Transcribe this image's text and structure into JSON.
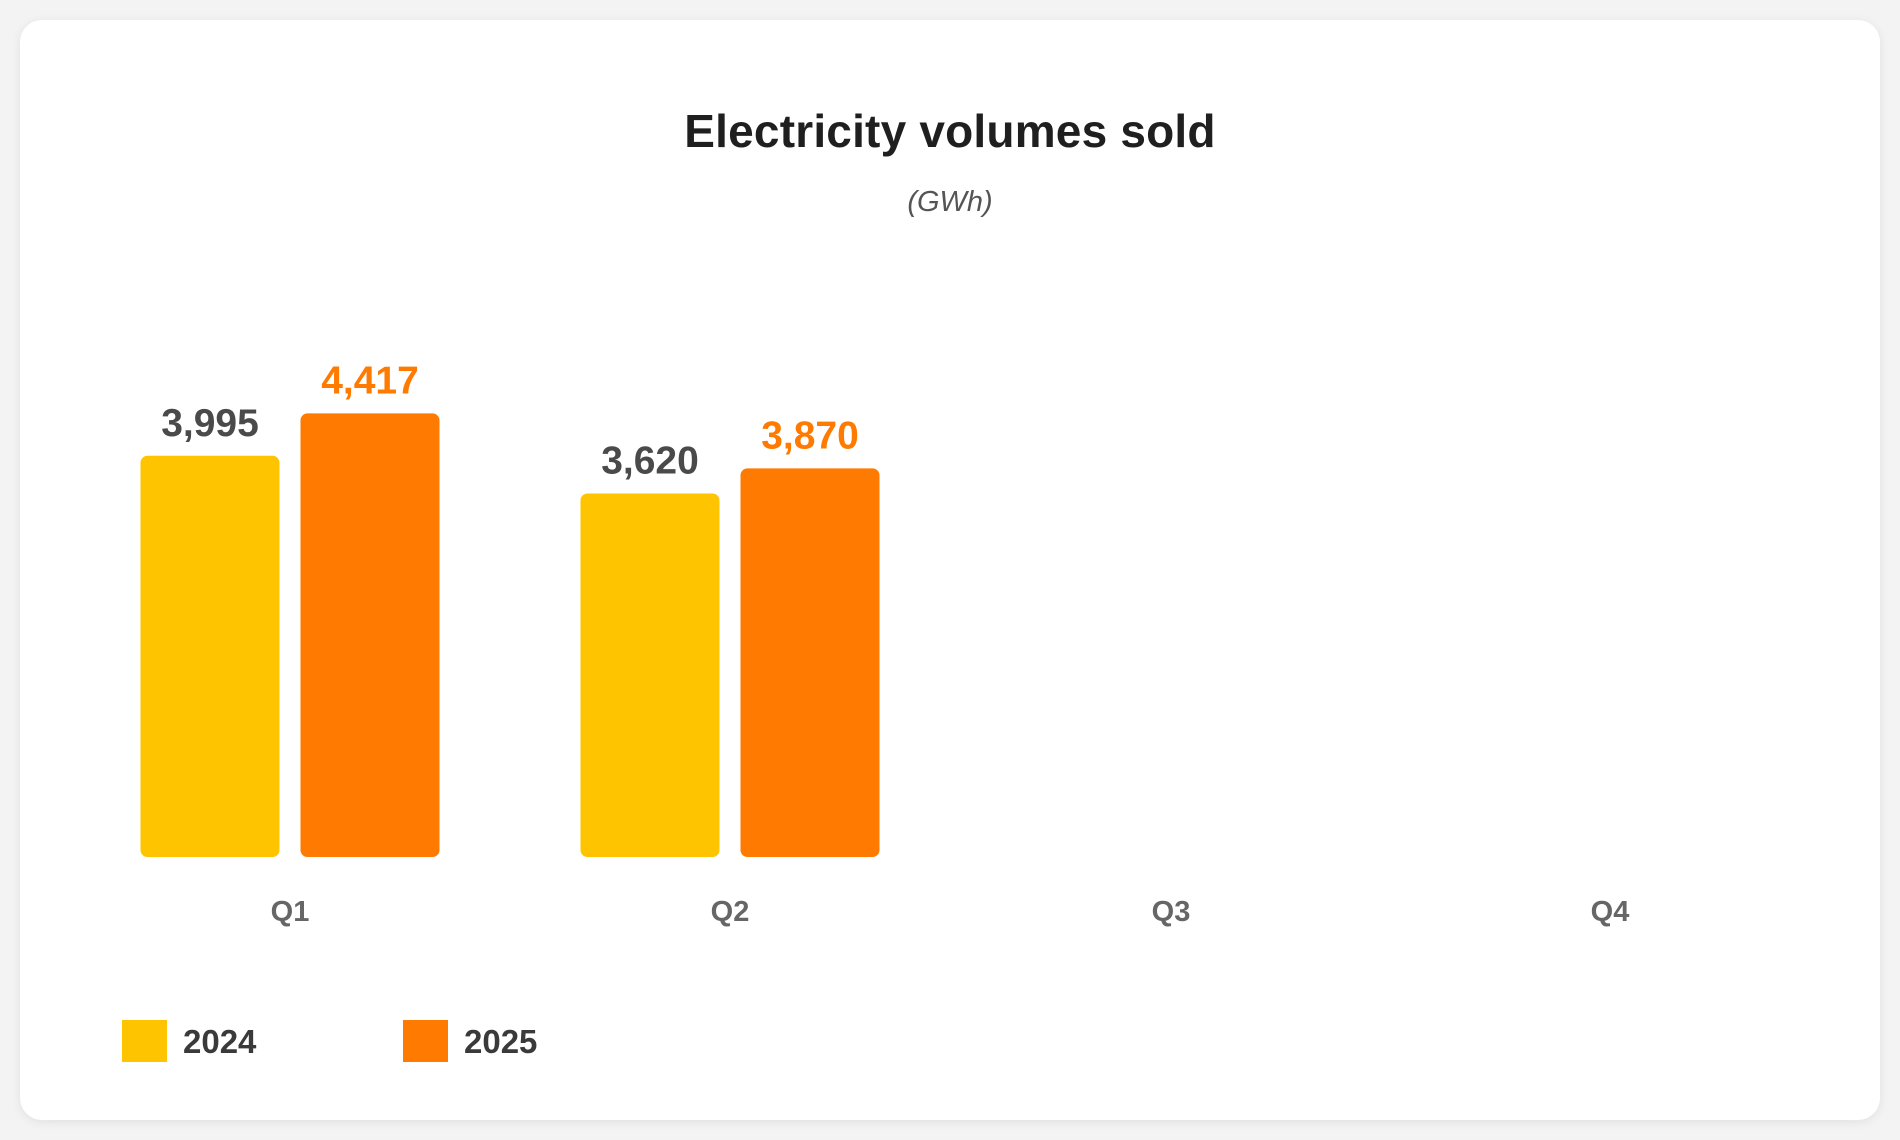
{
  "chart_data": {
    "type": "bar",
    "title": "Electricity volumes sold",
    "subtitle": "(GWh)",
    "xlabel": "",
    "ylabel": "",
    "categories": [
      "Q1",
      "Q2",
      "Q3",
      "Q4"
    ],
    "series": [
      {
        "name": "2024",
        "color": "#FFC400",
        "label_color": "#4a4a4a",
        "values": [
          3995,
          3620,
          null,
          null
        ],
        "labels": [
          "3,995",
          "3,620",
          "",
          ""
        ]
      },
      {
        "name": "2025",
        "color": "#FF7A00",
        "label_color": "#FF7A00",
        "values": [
          4417,
          3870,
          null,
          null
        ],
        "labels": [
          "4,417",
          "3,870",
          "",
          ""
        ]
      }
    ],
    "ylim": [
      0,
      4650
    ],
    "grid": false,
    "legend": "bottom-left"
  }
}
